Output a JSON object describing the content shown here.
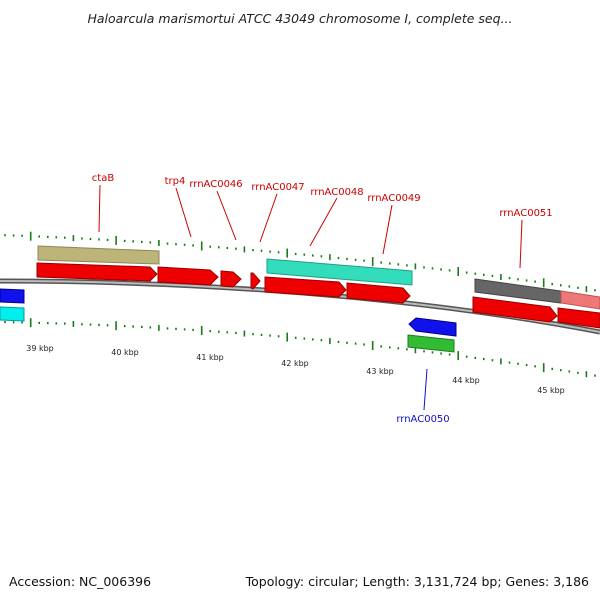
{
  "title": "Haloarcula marismortui ATCC 43049 chromosome I, complete seq...",
  "footer": {
    "accession": "Accession: NC_006396",
    "info": "Topology: circular; Length: 3,131,724 bp; Genes: 3,186"
  },
  "colors": {
    "label_forward": "#cc0000",
    "label_reverse": "#1010cc",
    "tick": "#1a7a1a",
    "backbone": "#888888",
    "cds": "#ee0000",
    "tan_feature": "#bdb47a",
    "teal_feature": "#33ddbb",
    "blue_feature": "#1111ee",
    "green_feature": "#33bb33",
    "cyan_feature": "#00eeee",
    "gray_feature": "#666666",
    "pink_feature": "#ee7777"
  },
  "scale_labels": [
    "39 kbp",
    "40 kbp",
    "41 kbp",
    "42 kbp",
    "43 kbp",
    "44 kbp",
    "45 kbp"
  ],
  "gene_labels": [
    "ctaB",
    "trp4",
    "rrnAC0046",
    "rrnAC0047",
    "rrnAC0048",
    "rrnAC0049",
    "rrnAC0050",
    "rrnAC0051"
  ]
}
